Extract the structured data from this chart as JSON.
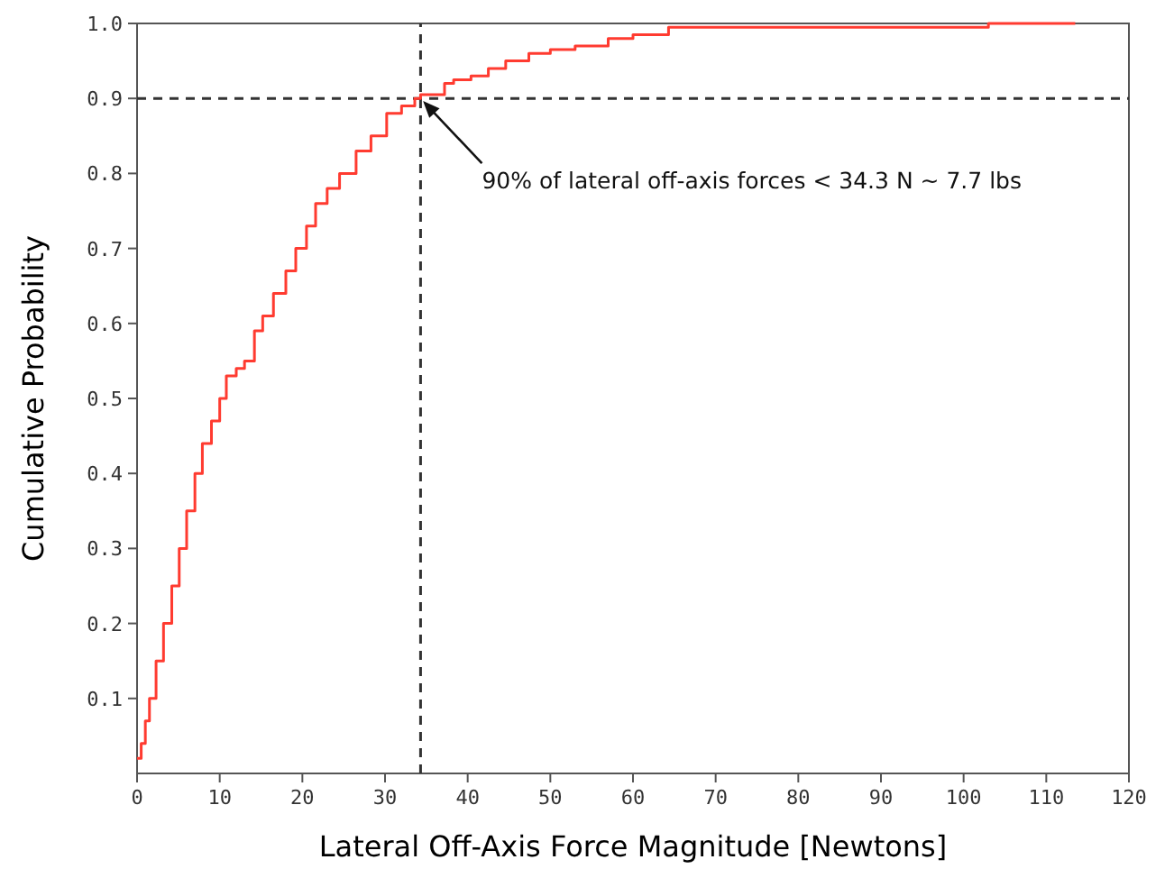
{
  "chart_data": {
    "type": "step",
    "xlabel": "Lateral Off-Axis Force Magnitude [Newtons]",
    "ylabel": "Cumulative Probability",
    "x": [
      0,
      0.5,
      1,
      1.5,
      2.3,
      3.2,
      4.2,
      5.1,
      6,
      7,
      7.9,
      9,
      10,
      10.8,
      12,
      13,
      14.2,
      15.2,
      16.5,
      18,
      19.2,
      20.5,
      21.6,
      23,
      24.5,
      26.5,
      28.3,
      30.2,
      32,
      33.6,
      34.3,
      37.2,
      38.3,
      40.4,
      42.5,
      44.6,
      47.4,
      50,
      53,
      57,
      60,
      64.3,
      70,
      80,
      90,
      103,
      113.5
    ],
    "series": [
      {
        "color": "#ff3b30",
        "values": [
          0.02,
          0.04,
          0.07,
          0.1,
          0.15,
          0.2,
          0.25,
          0.3,
          0.35,
          0.4,
          0.44,
          0.47,
          0.5,
          0.53,
          0.54,
          0.55,
          0.59,
          0.61,
          0.64,
          0.67,
          0.7,
          0.73,
          0.76,
          0.78,
          0.8,
          0.83,
          0.85,
          0.88,
          0.89,
          0.9,
          0.905,
          0.92,
          0.925,
          0.93,
          0.94,
          0.95,
          0.96,
          0.965,
          0.97,
          0.98,
          0.985,
          0.995,
          0.995,
          0.995,
          0.995,
          1,
          1
        ]
      }
    ],
    "xlim": [
      0,
      120
    ],
    "xticks": [
      0,
      10,
      20,
      30,
      40,
      50,
      60,
      70,
      80,
      90,
      100,
      110,
      120
    ],
    "ylim": [
      0,
      1
    ],
    "yticks": [
      0.1,
      0.2,
      0.3,
      0.4,
      0.5,
      0.6,
      0.7,
      0.8,
      0.9,
      {
        "value": 1,
        "label": "1.0"
      }
    ],
    "ref_lines": [
      {
        "axis": "x",
        "value": 34.3,
        "color": "#333333",
        "line_style": "dashed"
      },
      {
        "axis": "y",
        "value": 0.9,
        "color": "#333333",
        "line_style": "dashed"
      }
    ],
    "annotations": [
      {
        "text": "90% of lateral off-axis forces < 34.3 N ~ 7.7 lbs",
        "x": 34.3,
        "y": 0.9
      }
    ],
    "marker": "none",
    "line_style": "solid"
  }
}
